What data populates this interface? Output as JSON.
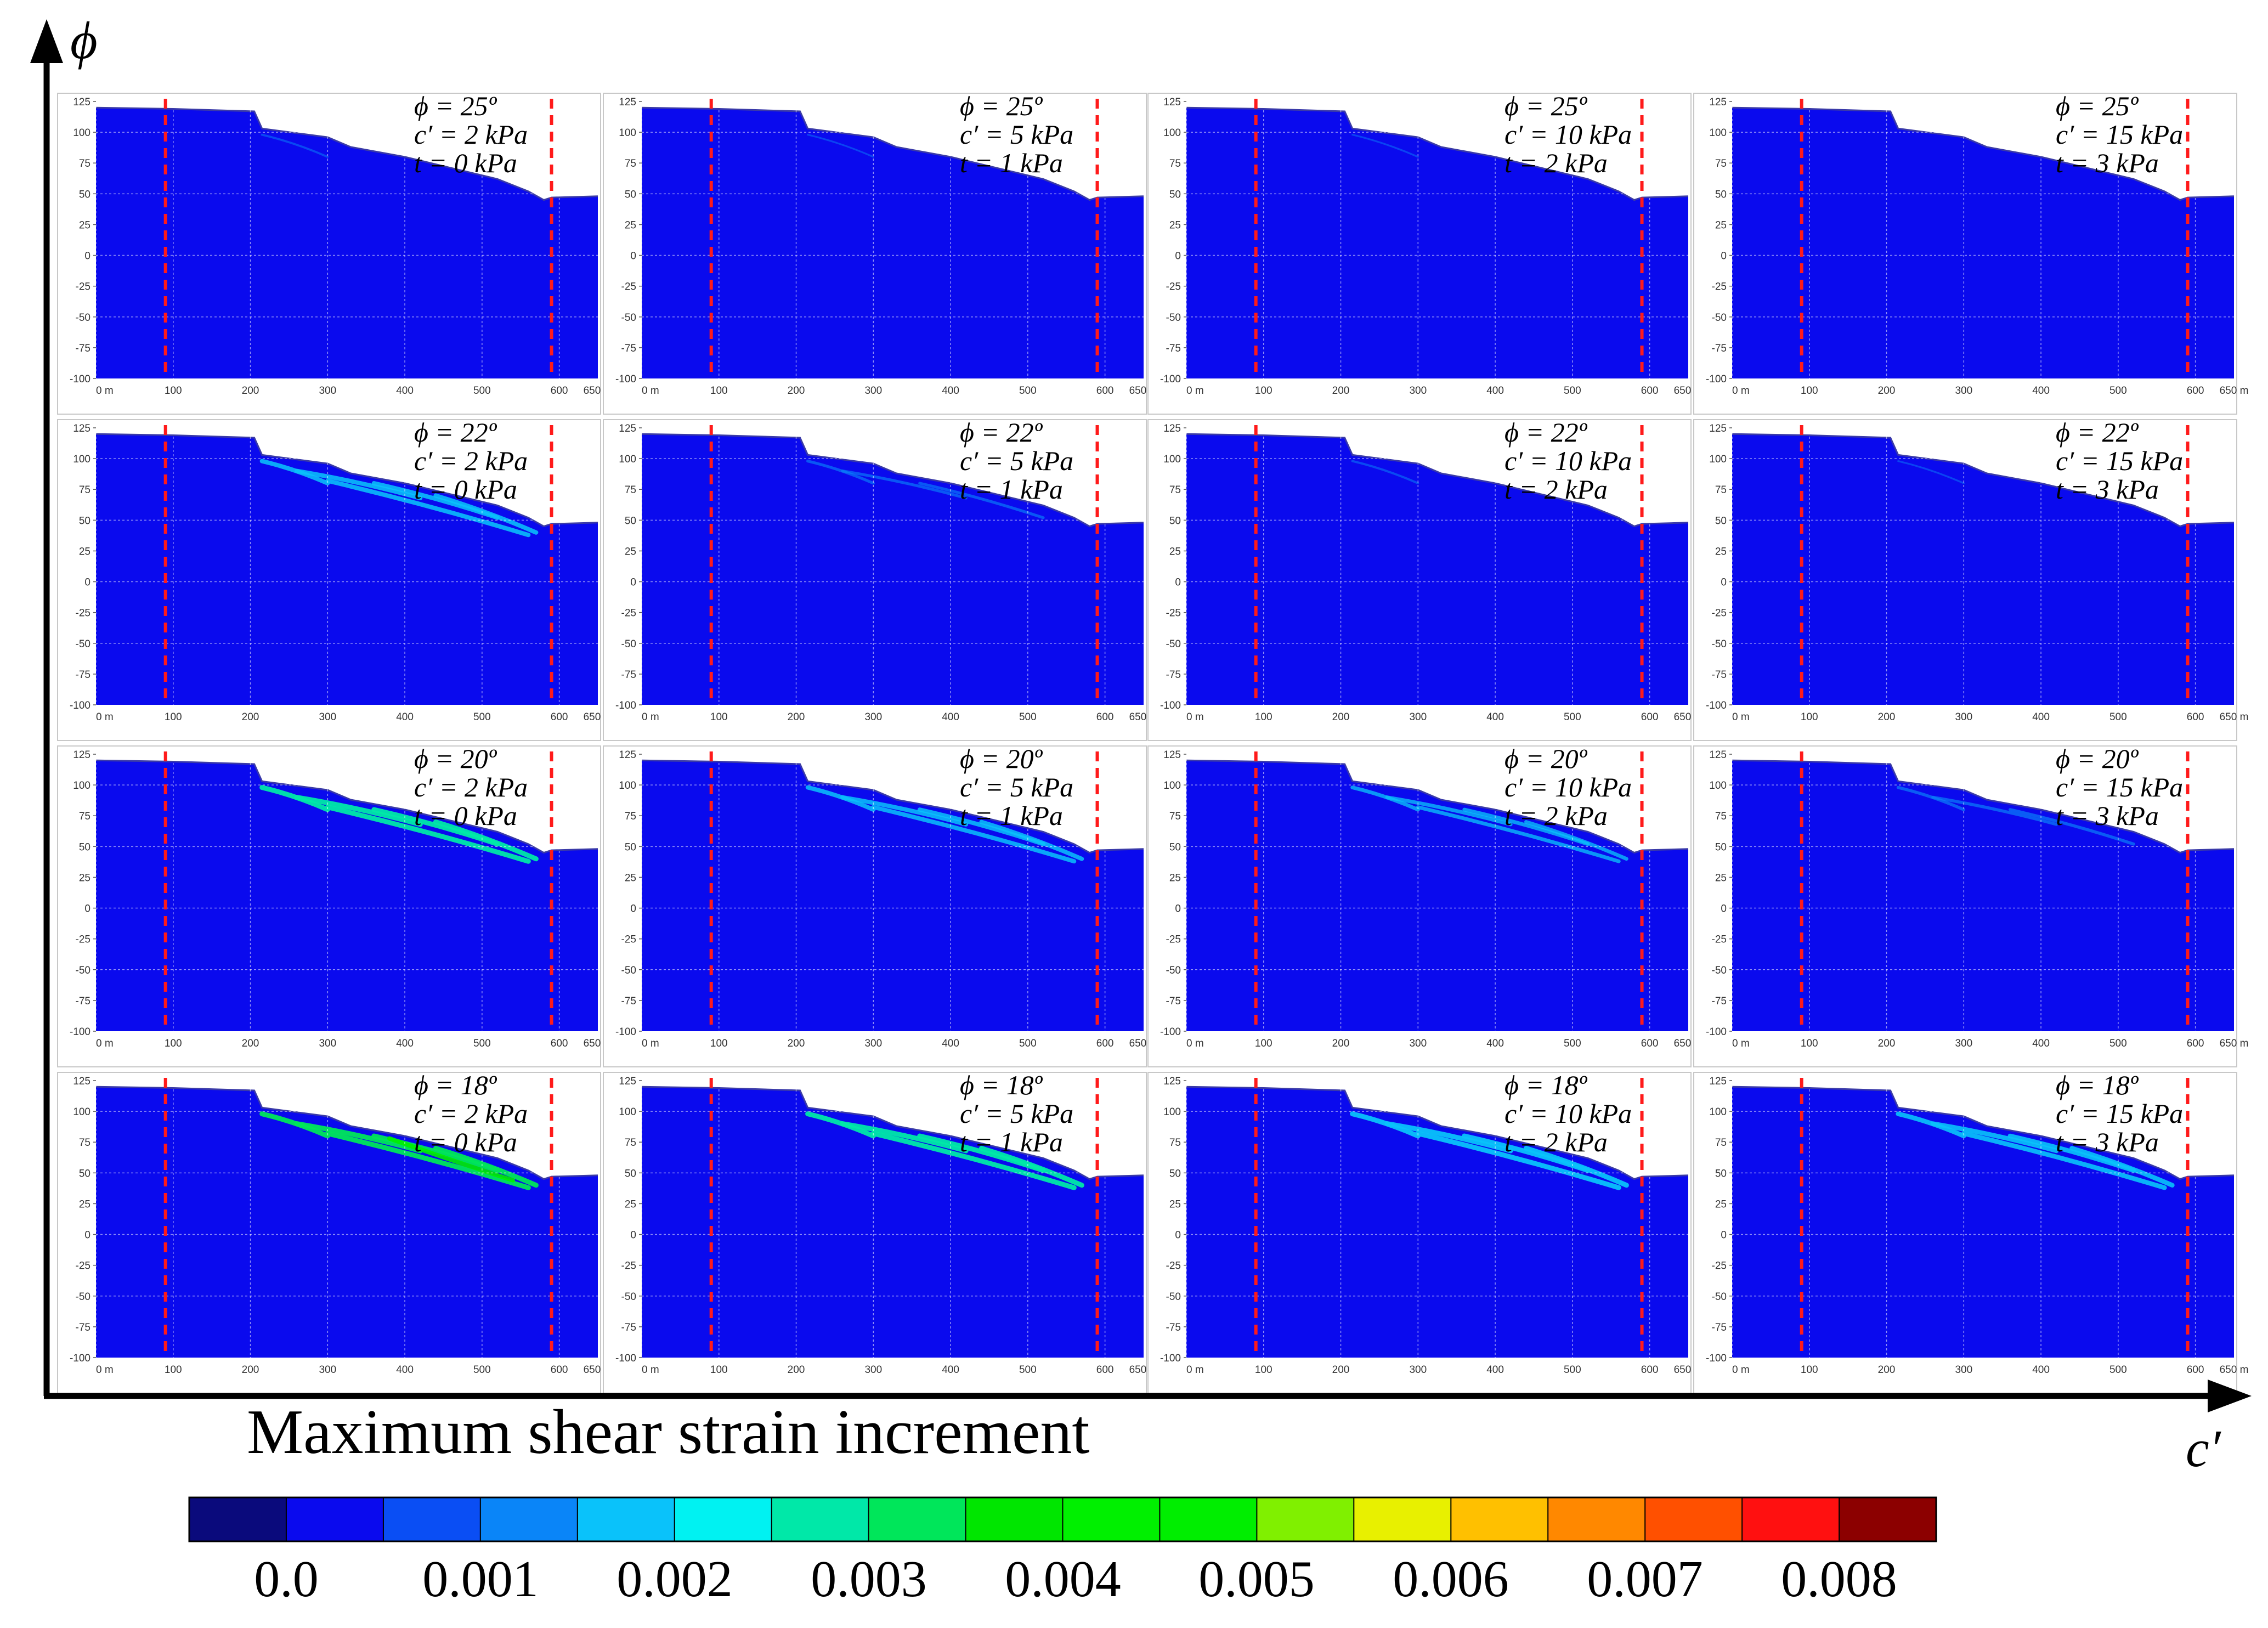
{
  "chart_data": {
    "type": "heatmap",
    "title": "Maximum shear strain increment",
    "axes": {
      "vertical": "ϕ",
      "horizontal": "c′"
    },
    "panel_axes": {
      "y_ticks": [
        "125",
        "100",
        "75",
        "50",
        "25",
        "0",
        "-25",
        "-50",
        "-75",
        "-100"
      ],
      "x_ticks": [
        "0 m",
        "100",
        "200",
        "300",
        "400",
        "500",
        "600",
        "650 m"
      ],
      "ylim": [
        -100,
        125
      ],
      "xlim": [
        0,
        650
      ]
    },
    "rows": [
      {
        "phi_label": "ϕ = 25º",
        "phi": 25
      },
      {
        "phi_label": "ϕ = 22º",
        "phi": 22
      },
      {
        "phi_label": "ϕ = 20º",
        "phi": 20
      },
      {
        "phi_label": "ϕ = 18º",
        "phi": 18
      }
    ],
    "columns": [
      {
        "c_label": "c′ = 2 kPa",
        "t_label": "t  = 0 kPa",
        "c": 2,
        "t": 0
      },
      {
        "c_label": "c′ = 5 kPa",
        "t_label": "t  = 1 kPa",
        "c": 5,
        "t": 1
      },
      {
        "c_label": "c′ = 10 kPa",
        "t_label": "t  = 2 kPa",
        "c": 10,
        "t": 2
      },
      {
        "c_label": "c′ = 15 kPa",
        "t_label": "t  = 3 kPa",
        "c": 15,
        "t": 3
      }
    ],
    "profile": [
      [
        0,
        120
      ],
      [
        100,
        119
      ],
      [
        205,
        117
      ],
      [
        215,
        103
      ],
      [
        300,
        96
      ],
      [
        330,
        88
      ],
      [
        400,
        80
      ],
      [
        460,
        71
      ],
      [
        520,
        62
      ],
      [
        560,
        52
      ],
      [
        580,
        45
      ],
      [
        590,
        47
      ],
      [
        650,
        48
      ]
    ],
    "red_lines_x": [
      90,
      590
    ],
    "strain_intensity": [
      [
        0.00035,
        0.0001,
        0.0001,
        0.0
      ],
      [
        0.0021,
        0.0009,
        0.0004,
        0.0001
      ],
      [
        0.0031,
        0.002,
        0.0016,
        0.0011
      ],
      [
        0.0047,
        0.0035,
        0.0026,
        0.0023
      ]
    ],
    "colorbar": {
      "colors": [
        "#0a0a7c",
        "#0a0aee",
        "#0a4ef4",
        "#0a85f8",
        "#0ac2fa",
        "#00f2f2",
        "#00e8a8",
        "#00e65a",
        "#00e600",
        "#00f000",
        "#00ee00",
        "#80f000",
        "#e8f000",
        "#ffc000",
        "#ff8800",
        "#ff5000",
        "#ff1010",
        "#8c0000"
      ],
      "tick_labels": [
        "0.0",
        "0.001",
        "0.002",
        "0.003",
        "0.004",
        "0.005",
        "0.006",
        "0.007",
        "0.008"
      ],
      "tick_values": [
        0.0,
        0.001,
        0.002,
        0.003,
        0.004,
        0.005,
        0.006,
        0.007,
        0.008
      ]
    }
  }
}
